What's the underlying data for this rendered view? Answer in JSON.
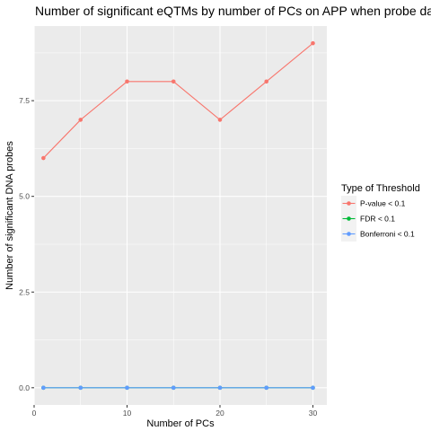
{
  "chart_data": {
    "type": "line",
    "title": "Number of significant eQTMs by number of PCs on APP when probe data a",
    "xlabel": "Number of PCs",
    "ylabel": "Number of significant DNA probes",
    "xlim": [
      0,
      31.5
    ],
    "ylim": [
      -0.45,
      9.45
    ],
    "x_ticks": [
      0,
      10,
      20,
      30
    ],
    "x_tick_labels": [
      "0",
      "10",
      "20",
      "30"
    ],
    "y_ticks": [
      0,
      2.5,
      5,
      7.5
    ],
    "y_tick_labels": [
      "0.0",
      "2.5",
      "5.0",
      "7.5"
    ],
    "x_minor_ticks": [
      5,
      15,
      25
    ],
    "y_minor_ticks": [
      1.25,
      3.75,
      6.25,
      8.75
    ],
    "grid": true,
    "legend": {
      "title": "Type of Threshold",
      "position": "right"
    },
    "x": [
      1,
      5,
      10,
      15,
      20,
      25,
      30
    ],
    "series": [
      {
        "name": "P-value < 0.1",
        "color": "#F8766D",
        "values": [
          6,
          7,
          8,
          8,
          7,
          8,
          9
        ]
      },
      {
        "name": "FDR < 0.1",
        "color": "#00BA38",
        "values": [
          0,
          0,
          0,
          0,
          0,
          0,
          0
        ]
      },
      {
        "name": "Bonferroni < 0.1",
        "color": "#619CFF",
        "values": [
          0,
          0,
          0,
          0,
          0,
          0,
          0
        ]
      }
    ],
    "colors": {
      "panel_background": "#EBEBEB",
      "grid_major": "#FFFFFF",
      "tick_color": "#333333"
    }
  }
}
